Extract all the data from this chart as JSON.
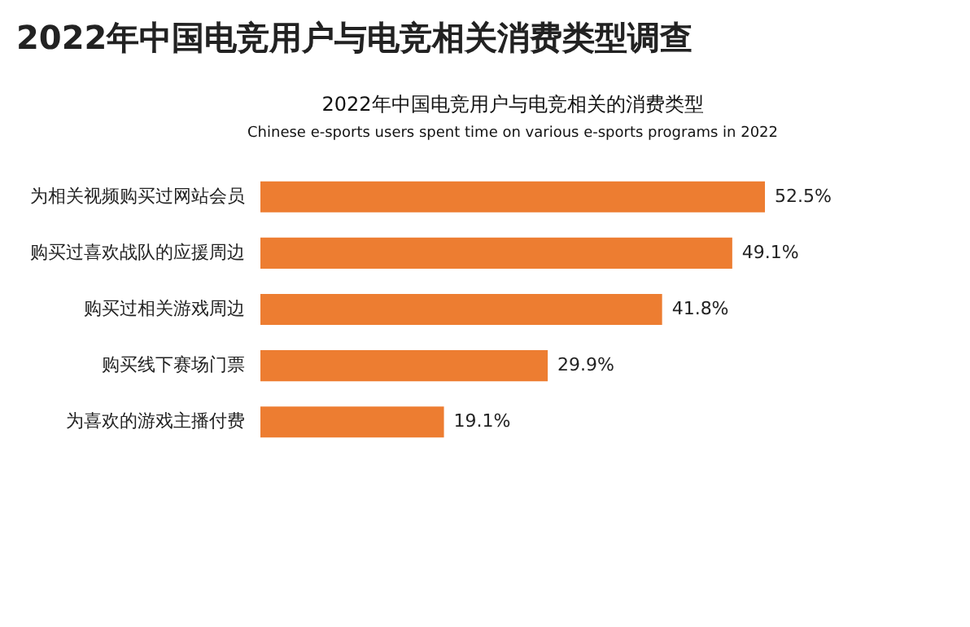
{
  "chart_data": {
    "type": "bar",
    "orientation": "horizontal",
    "title": "2022年中国电竞用户与电竞相关消费类型调查",
    "subtitle": "2022年中国电竞用户与电竞相关的消费类型",
    "annotations": [
      "Chinese e-sports users spent time on various e-sports programs in 2022"
    ],
    "categories": [
      "为相关视频购买过网站会员",
      "购买过喜欢战队的应援周边",
      "购买过相关游戏周边",
      "购买线下赛场门票",
      "为喜欢的游戏主播付费"
    ],
    "values": [
      52.5,
      49.1,
      41.8,
      29.9,
      19.1
    ],
    "value_labels": [
      "52.5%",
      "49.1%",
      "41.8%",
      "29.9%",
      "19.1%"
    ],
    "color": "#ed7d31",
    "grid": false
  }
}
